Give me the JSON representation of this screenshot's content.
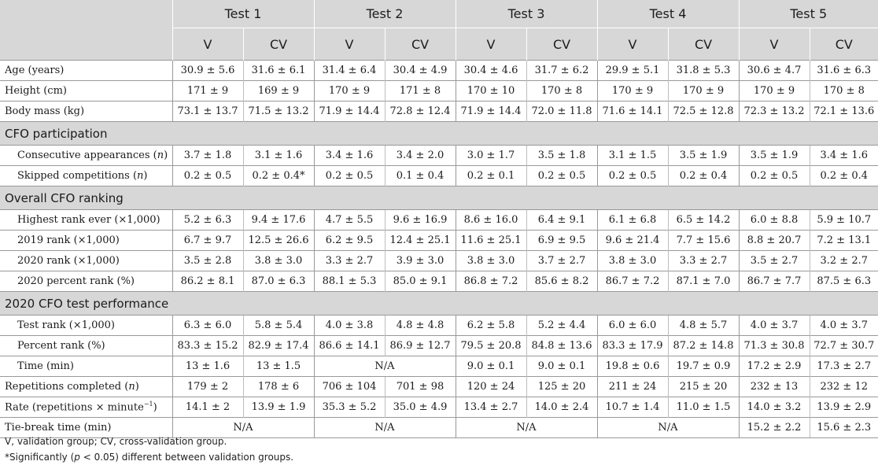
{
  "tests": [
    "Test 1",
    "Test 2",
    "Test 3",
    "Test 4",
    "Test 5"
  ],
  "groups": [
    "V",
    "CV"
  ],
  "rows": [
    {
      "label": "Age (years)",
      "values": [
        "30.9 ± 5.6",
        "31.6 ± 6.1",
        "31.4 ± 6.4",
        "30.4 ± 4.9",
        "30.4 ± 4.6",
        "31.7 ± 6.2",
        "29.9 ± 5.1",
        "31.8 ± 5.3",
        "30.6 ± 4.7",
        "31.6 ± 6.3"
      ]
    },
    {
      "label": "Height (cm)",
      "values": [
        "171 ± 9",
        "169 ± 9",
        "170 ± 9",
        "171 ± 8",
        "170 ± 10",
        "170 ± 8",
        "170 ± 9",
        "170 ± 9",
        "170 ± 9",
        "170 ± 8"
      ]
    },
    {
      "label": "Body mass (kg)",
      "values": [
        "73.1 ± 13.7",
        "71.5 ± 13.2",
        "71.9 ± 14.4",
        "72.8 ± 12.4",
        "71.9 ± 14.4",
        "72.0 ± 11.8",
        "71.6 ± 14.1",
        "72.5 ± 12.8",
        "72.3 ± 13.2",
        "72.1 ± 13.6"
      ]
    }
  ],
  "sections": [
    {
      "title": "CFO participation",
      "rows": [
        {
          "label": "Consecutive appearances (n)",
          "values": [
            "3.7 ± 1.8",
            "3.1 ± 1.6",
            "3.4 ± 1.6",
            "3.4 ± 2.0",
            "3.0 ± 1.7",
            "3.5 ± 1.8",
            "3.1 ± 1.5",
            "3.5 ± 1.9",
            "3.5 ± 1.9",
            "3.4 ± 1.6"
          ]
        },
        {
          "label": "Skipped competitions (n)",
          "values": [
            "0.2 ± 0.5",
            "0.2 ± 0.4*",
            "0.2 ± 0.5",
            "0.1 ± 0.4",
            "0.2 ± 0.1",
            "0.2 ± 0.5",
            "0.2 ± 0.5",
            "0.2 ± 0.4",
            "0.2 ± 0.5",
            "0.2 ± 0.4"
          ]
        }
      ]
    },
    {
      "title": "Overall CFO ranking",
      "rows": [
        {
          "label": "Highest rank ever (×1,000)",
          "values": [
            "5.2 ± 6.3",
            "9.4 ± 17.6",
            "4.7 ± 5.5",
            "9.6 ± 16.9",
            "8.6 ± 16.0",
            "6.4 ± 9.1",
            "6.1 ± 6.8",
            "6.5 ± 14.2",
            "6.0 ± 8.8",
            "5.9 ± 10.7"
          ]
        },
        {
          "label": "2019 rank (×1,000)",
          "values": [
            "6.7 ± 9.7",
            "12.5 ± 26.6",
            "6.2 ± 9.5",
            "12.4 ± 25.1",
            "11.6 ± 25.1",
            "6.9 ± 9.5",
            "9.6 ± 21.4",
            "7.7 ± 15.6",
            "8.8 ± 20.7",
            "7.2 ± 13.1"
          ]
        },
        {
          "label": "2020 rank (×1,000)",
          "values": [
            "3.5 ± 2.8",
            "3.8 ± 3.0",
            "3.3 ± 2.7",
            "3.9 ± 3.0",
            "3.8 ± 3.0",
            "3.7 ± 2.7",
            "3.8 ± 3.0",
            "3.3 ± 2.7",
            "3.5 ± 2.7",
            "3.2 ± 2.7"
          ]
        },
        {
          "label": "2020 percent rank (%)",
          "values": [
            "86.2 ± 8.1",
            "87.0 ± 6.3",
            "88.1 ± 5.3",
            "85.0 ± 9.1",
            "86.8 ± 7.2",
            "85.6 ± 8.2",
            "86.7 ± 7.2",
            "87.1 ± 7.0",
            "86.7 ± 7.7",
            "87.5 ± 6.3"
          ]
        }
      ]
    },
    {
      "title": "2020 CFO test performance",
      "rows": [
        {
          "label": "Test rank (×1,000)",
          "values": [
            "6.3 ± 6.0",
            "5.8 ± 5.4",
            "4.0 ± 3.8",
            "4.8 ± 4.8",
            "6.2 ± 5.8",
            "5.2 ± 4.4",
            "6.0 ± 6.0",
            "4.8 ± 5.7",
            "4.0 ± 3.7",
            "4.0 ± 3.7"
          ]
        },
        {
          "label": "Percent rank (%)",
          "values": [
            "83.3 ± 15.2",
            "82.9 ± 17.4",
            "86.6 ± 14.1",
            "86.9 ± 12.7",
            "79.5 ± 20.8",
            "84.8 ± 13.6",
            "83.3 ± 17.9",
            "87.2 ± 14.8",
            "71.3 ± 30.8",
            "72.7 ± 30.7"
          ]
        },
        {
          "label": "Time (min)",
          "values": [
            "13 ± 1.6",
            "13 ± 1.5",
            "N/A",
            null,
            "9.0 ± 0.1",
            "9.0 ± 0.1",
            "19.8 ± 0.6",
            "19.7 ± 0.9",
            "17.2 ± 2.9",
            "17.3 ± 2.7"
          ]
        }
      ]
    }
  ],
  "tail_rows": [
    {
      "label": "Repetitions completed (n)",
      "values": [
        "179 ± 2",
        "178 ± 6",
        "706 ± 104",
        "701 ± 98",
        "120 ± 24",
        "125 ± 20",
        "211 ± 24",
        "215 ± 20",
        "232 ± 13",
        "232 ± 12"
      ]
    },
    {
      "label": "Rate (repetitions × minute",
      "label_sup": "−1",
      "label_close": ")",
      "values": [
        "14.1 ± 2",
        "13.9 ± 1.9",
        "35.3 ± 5.2",
        "35.0 ± 4.9",
        "13.4 ± 2.7",
        "14.0 ± 2.4",
        "10.7 ± 1.4",
        "11.0 ± 1.5",
        "14.0 ± 3.2",
        "13.9 ± 2.9"
      ]
    },
    {
      "label": "Tie-break time (min)",
      "values": [
        "N/A",
        null,
        "N/A",
        null,
        "N/A",
        null,
        "N/A",
        null,
        "15.2 ± 2.2",
        "15.6 ± 2.3"
      ]
    }
  ],
  "footnotes": [
    "V, validation group; CV, cross-validation group.",
    "*Significantly (p < 0.05) different between validation groups."
  ]
}
